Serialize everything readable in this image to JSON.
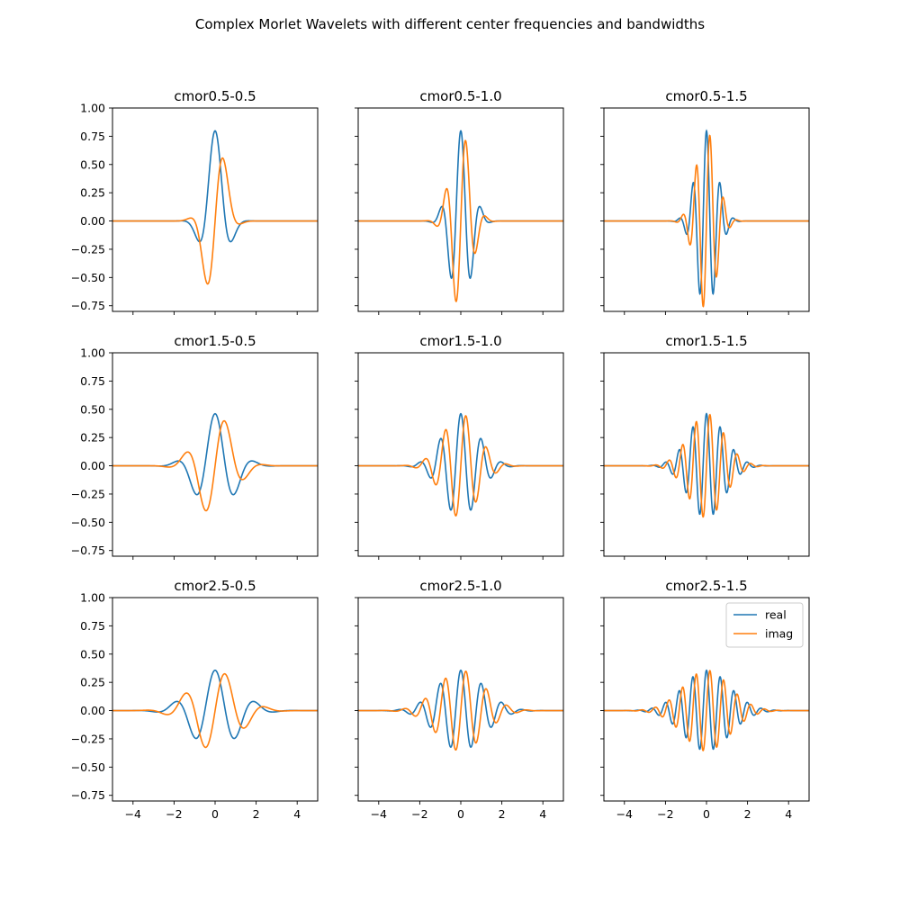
{
  "figure": {
    "title": "Complex Morlet Wavelets with different center frequencies and bandwidths"
  },
  "chart_data": {
    "type": "line",
    "sharex": true,
    "sharey": true,
    "xlim": [
      -5,
      5
    ],
    "ylim": [
      -0.8,
      1.0
    ],
    "xticks": [
      -4,
      -2,
      0,
      2,
      4
    ],
    "yticks": [
      1.0,
      0.75,
      0.5,
      0.25,
      0.0,
      -0.25,
      -0.5,
      -0.75
    ],
    "xtick_labels": [
      "−4",
      "−2",
      "0",
      "2",
      "4"
    ],
    "ytick_labels": [
      "1.00",
      "0.75",
      "0.50",
      "0.25",
      "0.00",
      "−0.25",
      "−0.50",
      "−0.75"
    ],
    "grid": false,
    "series_style": [
      {
        "name": "real",
        "color": "#1f77b4"
      },
      {
        "name": "imag",
        "color": "#ff7f0e"
      }
    ],
    "legend": {
      "location": "upper right",
      "panel": "cmor2.5-1.5",
      "entries": [
        "real",
        "imag"
      ]
    },
    "panels": [
      {
        "title": "cmor0.5-0.5",
        "bandwidth": 0.5,
        "center_frequency": 0.5
      },
      {
        "title": "cmor0.5-1.0",
        "bandwidth": 0.5,
        "center_frequency": 1.0
      },
      {
        "title": "cmor0.5-1.5",
        "bandwidth": 0.5,
        "center_frequency": 1.5
      },
      {
        "title": "cmor1.5-0.5",
        "bandwidth": 1.5,
        "center_frequency": 0.5
      },
      {
        "title": "cmor1.5-1.0",
        "bandwidth": 1.5,
        "center_frequency": 1.0
      },
      {
        "title": "cmor1.5-1.5",
        "bandwidth": 1.5,
        "center_frequency": 1.5
      },
      {
        "title": "cmor2.5-0.5",
        "bandwidth": 2.5,
        "center_frequency": 0.5
      },
      {
        "title": "cmor2.5-1.0",
        "bandwidth": 2.5,
        "center_frequency": 1.0
      },
      {
        "title": "cmor2.5-1.5",
        "bandwidth": 2.5,
        "center_frequency": 1.5
      }
    ]
  }
}
